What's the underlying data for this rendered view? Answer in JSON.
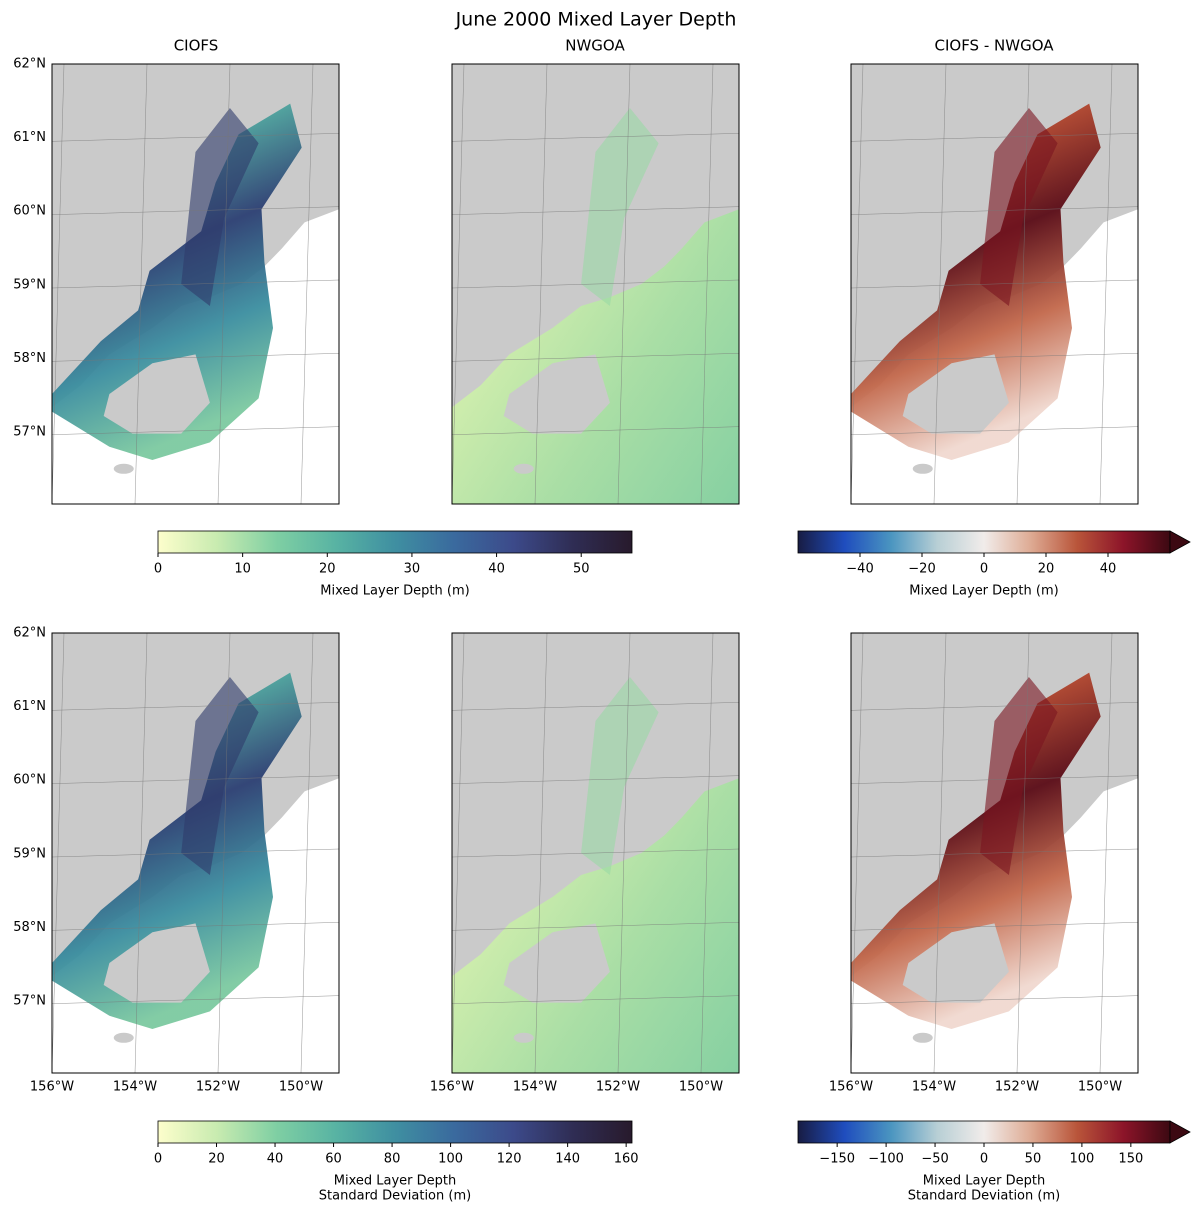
{
  "title": "June 2000 Mixed Layer Depth",
  "panels": [
    {
      "title": "CIOFS"
    },
    {
      "title": "NWGOA"
    },
    {
      "title": "CIOFS - NWGOA"
    }
  ],
  "lat_labels": [
    "62°N",
    "61°N",
    "60°N",
    "59°N",
    "58°N",
    "57°N"
  ],
  "lon_labels": [
    "156°W",
    "154°W",
    "152°W",
    "150°W"
  ],
  "colorbars": [
    {
      "range": [
        0,
        56
      ],
      "ticks": [
        0,
        10,
        20,
        30,
        40,
        50
      ],
      "label": [
        "Mixed Layer Depth (m)"
      ],
      "extend": false,
      "colormap": [
        "#fdfecc",
        "#c8ebb0",
        "#7fcfa3",
        "#58b3a3",
        "#3f8fa1",
        "#3a6a9e",
        "#3c4a8a",
        "#2f2d54",
        "#281a2c"
      ]
    },
    {
      "range": [
        -60,
        60
      ],
      "ticks": [
        {
          "value": -40,
          "label": "−40"
        },
        {
          "value": -20,
          "label": "−20"
        },
        0,
        20,
        40
      ],
      "label": [
        "Mixed Layer Depth (m)"
      ],
      "extend": true,
      "colormap": [
        "#181c43",
        "#1f4dbe",
        "#4a95c0",
        "#b8cfd5",
        "#f1ecea",
        "#deab94",
        "#b9553a",
        "#8c1429",
        "#3c0912"
      ]
    },
    {
      "range": [
        0,
        162
      ],
      "ticks": [
        0,
        20,
        40,
        60,
        80,
        100,
        120,
        140,
        160
      ],
      "label": [
        "Mixed Layer Depth",
        "Standard Deviation (m)"
      ],
      "extend": false,
      "colormap": [
        "#fdfecc",
        "#c8ebb0",
        "#7fcfa3",
        "#58b3a3",
        "#3f8fa1",
        "#3a6a9e",
        "#3c4a8a",
        "#2f2d54",
        "#281a2c"
      ]
    },
    {
      "range": [
        -190,
        190
      ],
      "ticks": [
        {
          "value": -150,
          "label": "−150"
        },
        {
          "value": -100,
          "label": "−100"
        },
        {
          "value": -50,
          "label": "−50"
        },
        0,
        50,
        100,
        150
      ],
      "label": [
        "Mixed Layer Depth",
        "Standard Deviation (m)"
      ],
      "extend": true,
      "colormap": [
        "#181c43",
        "#1f4dbe",
        "#4a95c0",
        "#b8cfd5",
        "#f1ecea",
        "#deab94",
        "#b9553a",
        "#8c1429",
        "#3c0912"
      ]
    }
  ]
}
